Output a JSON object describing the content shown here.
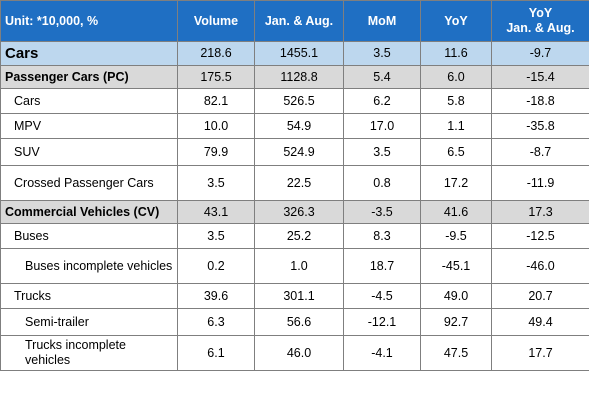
{
  "header": {
    "unit": "Unit: *10,000, %",
    "volume": "Volume",
    "jan_aug": "Jan. & Aug.",
    "mom": "MoM",
    "yoy": "YoY",
    "yoy_jan_aug_line1": "YoY",
    "yoy_jan_aug_line2": "Jan. & Aug."
  },
  "rows": [
    {
      "label": "Cars",
      "volume": "218.6",
      "jan_aug": "1455.1",
      "mom": "3.5",
      "yoy": "11.6",
      "yoy_jan_aug": "-9.7"
    },
    {
      "label": "Passenger Cars (PC)",
      "volume": "175.5",
      "jan_aug": "1128.8",
      "mom": "5.4",
      "yoy": "6.0",
      "yoy_jan_aug": "-15.4"
    },
    {
      "label": "Cars",
      "volume": "82.1",
      "jan_aug": "526.5",
      "mom": "6.2",
      "yoy": "5.8",
      "yoy_jan_aug": "-18.8"
    },
    {
      "label": "MPV",
      "volume": "10.0",
      "jan_aug": "54.9",
      "mom": "17.0",
      "yoy": "1.1",
      "yoy_jan_aug": "-35.8"
    },
    {
      "label": "SUV",
      "volume": "79.9",
      "jan_aug": "524.9",
      "mom": "3.5",
      "yoy": "6.5",
      "yoy_jan_aug": "-8.7"
    },
    {
      "label": "Crossed Passenger Cars",
      "volume": "3.5",
      "jan_aug": "22.5",
      "mom": "0.8",
      "yoy": "17.2",
      "yoy_jan_aug": "-11.9"
    },
    {
      "label": "Commercial Vehicles (CV)",
      "volume": "43.1",
      "jan_aug": "326.3",
      "mom": "-3.5",
      "yoy": "41.6",
      "yoy_jan_aug": "17.3"
    },
    {
      "label": "Buses",
      "volume": "3.5",
      "jan_aug": "25.2",
      "mom": "8.3",
      "yoy": "-9.5",
      "yoy_jan_aug": "-12.5"
    },
    {
      "label": "Buses incomplete vehicles",
      "volume": "0.2",
      "jan_aug": "1.0",
      "mom": "18.7",
      "yoy": "-45.1",
      "yoy_jan_aug": "-46.0"
    },
    {
      "label": "Trucks",
      "volume": "39.6",
      "jan_aug": "301.1",
      "mom": "-4.5",
      "yoy": "49.0",
      "yoy_jan_aug": "20.7"
    },
    {
      "label": "Semi-trailer",
      "volume": "6.3",
      "jan_aug": "56.6",
      "mom": "-12.1",
      "yoy": "92.7",
      "yoy_jan_aug": "49.4"
    },
    {
      "label": "Trucks incomplete vehicles",
      "volume": "6.1",
      "jan_aug": "46.0",
      "mom": "-4.1",
      "yoy": "47.5",
      "yoy_jan_aug": "17.7"
    }
  ]
}
